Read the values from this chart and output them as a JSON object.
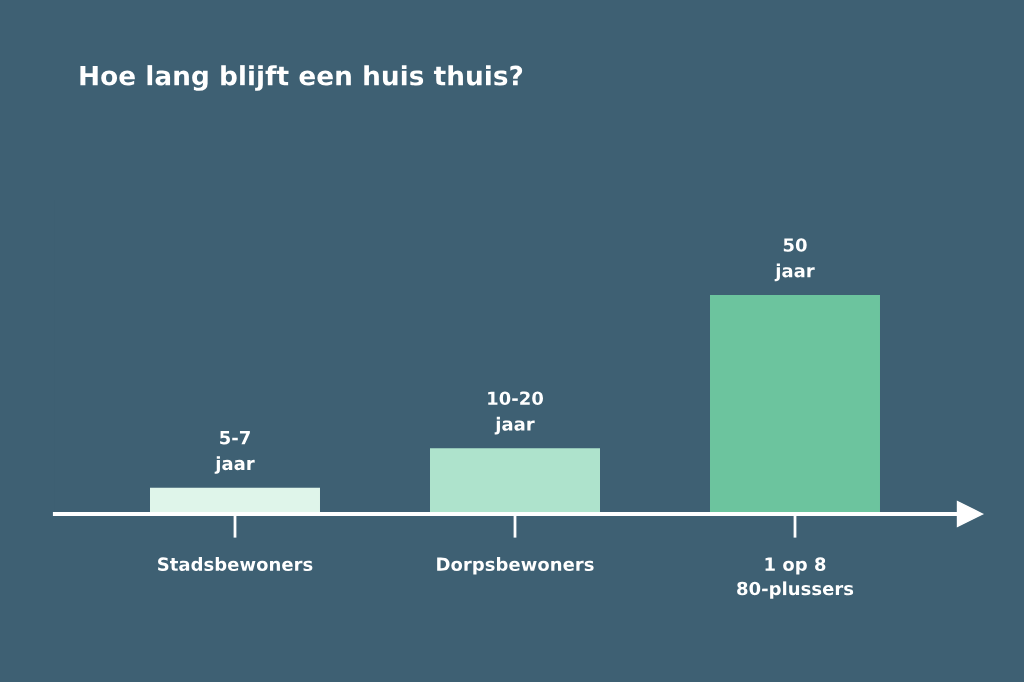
{
  "chart_data": {
    "type": "bar",
    "title": "Hoe lang blijft een huis thuis?",
    "categories": [
      "Stadsbewoners",
      "Dorpsbewoners",
      "1 op 8\n80-plussers"
    ],
    "values": [
      6,
      15,
      50
    ],
    "colors": [
      "#dff5ea",
      "#aee3cc",
      "#6cc49e"
    ],
    "value_labels": [
      "5-7\njaar",
      "10-20\njaar",
      "50\njaar"
    ],
    "tick_labels": "x",
    "grid": false,
    "legend": false
  }
}
